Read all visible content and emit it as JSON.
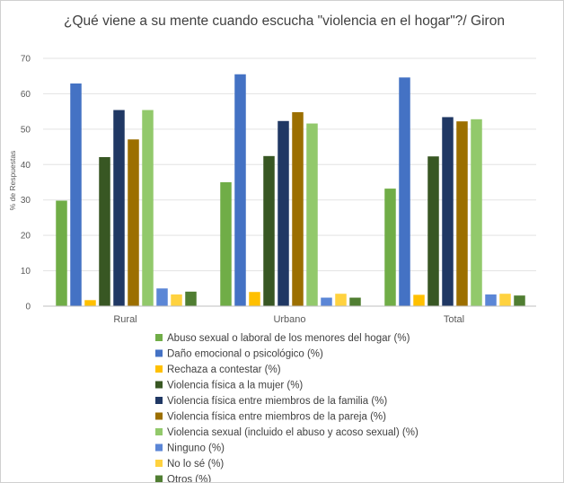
{
  "chart_data": {
    "type": "bar",
    "title": "¿Qué viene a su mente cuando escucha \"violencia en el hogar\"?/ Giron",
    "ylabel": "% de Respuestas",
    "xlabel": "",
    "ylim": [
      0,
      70
    ],
    "yticks": [
      "0",
      "10",
      "20",
      "30",
      "40",
      "50",
      "60",
      "70"
    ],
    "grid": true,
    "legend_position": "bottom",
    "categories": [
      "Rural",
      "Urbano",
      "Total"
    ],
    "series": [
      {
        "name": "Abuso sexual o laboral de los menores del hogar (%)",
        "color": "#70ad47",
        "values": [
          29.8,
          35.0,
          33.2
        ]
      },
      {
        "name": "Daño emocional o psicológico (%)",
        "color": "#4472c4",
        "values": [
          62.9,
          65.5,
          64.6
        ]
      },
      {
        "name": "Rechaza a contestar (%)",
        "color": "#ffc000",
        "values": [
          1.7,
          4.0,
          3.2
        ]
      },
      {
        "name": "Violencia física a la mujer (%)",
        "color": "#385723",
        "values": [
          42.1,
          42.4,
          42.3
        ]
      },
      {
        "name": "Violencia física entre miembros de la familia (%)",
        "color": "#203864",
        "values": [
          55.4,
          52.3,
          53.4
        ]
      },
      {
        "name": "Violencia física entre miembros de la pareja (%)",
        "color": "#9c6f00",
        "values": [
          47.1,
          54.8,
          52.2
        ]
      },
      {
        "name": "Violencia sexual (incluido el abuso y acoso sexual) (%)",
        "color": "#92c96b",
        "values": [
          55.4,
          51.6,
          52.8
        ]
      },
      {
        "name": "Ninguno (%)",
        "color": "#5b86d6",
        "values": [
          5.0,
          2.4,
          3.3
        ]
      },
      {
        "name": "No lo sé (%)",
        "color": "#ffd23f",
        "values": [
          3.3,
          3.5,
          3.5
        ]
      },
      {
        "name": "Otros (%)",
        "color": "#507e32",
        "values": [
          4.1,
          2.4,
          3.0
        ]
      }
    ]
  }
}
